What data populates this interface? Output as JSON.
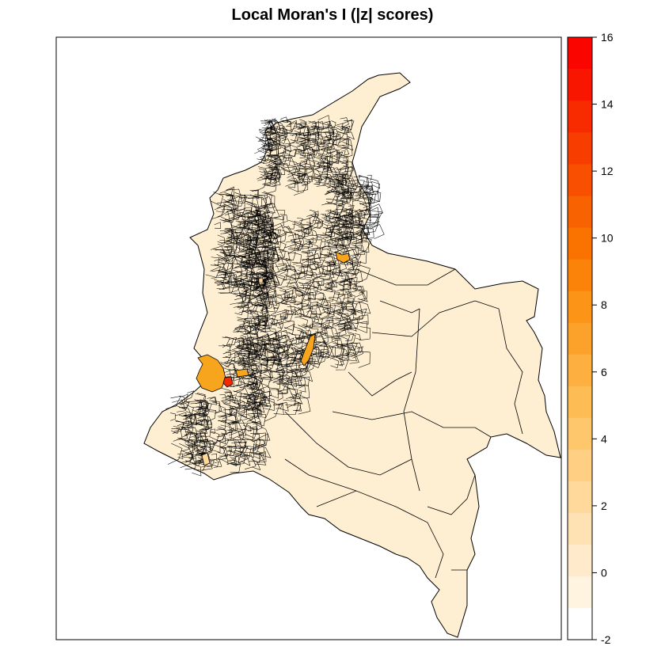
{
  "title": "Local Moran's I (|z| scores)",
  "map": {
    "region": "Colombia municipalities",
    "base_fill": "#FFEFD2",
    "border_color": "#000000",
    "highlighted_areas": [
      {
        "name": "western-pacific-cluster",
        "fill": "#F7A51C"
      },
      {
        "name": "western-hotspot",
        "fill": "#F22A00"
      },
      {
        "name": "northeast-cluster",
        "fill": "#F7A51C"
      },
      {
        "name": "central-valley-cluster",
        "fill": "#F7A51C"
      },
      {
        "name": "south-west-minor",
        "fill": "#FFD89A"
      }
    ]
  },
  "legend": {
    "ticks": [
      "16",
      "14",
      "12",
      "10",
      "8",
      "6",
      "4",
      "2",
      "0",
      "-2"
    ],
    "min": -2,
    "max": 16,
    "colors": [
      "#FFFFFF",
      "#FFF4E0",
      "#FFEBCC",
      "#FFE2B4",
      "#FFD99C",
      "#FFD084",
      "#FFC76C",
      "#FEBC55",
      "#FDB040",
      "#FCA22B",
      "#FC9418",
      "#FB8309",
      "#FA7200",
      "#F96200",
      "#F85000",
      "#F73E00",
      "#F72A00",
      "#F81600",
      "#FA0500"
    ]
  }
}
